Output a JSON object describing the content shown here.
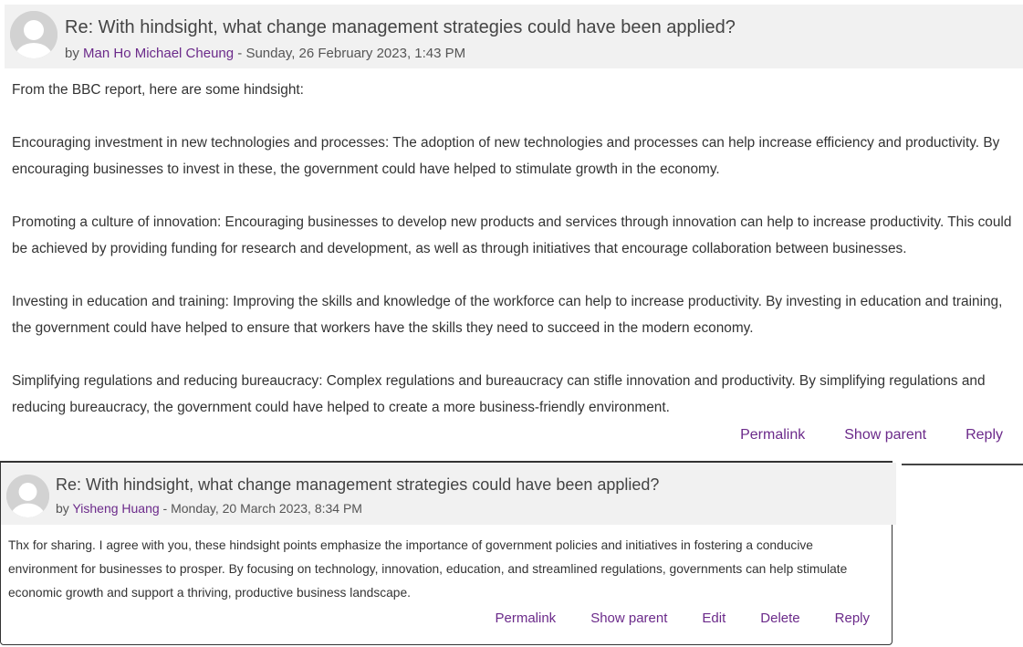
{
  "post1": {
    "subject": "Re: With hindsight, what change management strategies could have been applied?",
    "by_prefix": "by",
    "author": "Man Ho Michael Cheung",
    "date": " - Sunday, 26 February 2023, 1:43 PM",
    "paragraphs": [
      "From the BBC report, here are some hindsight:",
      "Encouraging investment in new technologies and processes: The adoption of new technologies and processes can help increase efficiency and productivity. By encouraging businesses to invest in these, the government could have helped to stimulate growth in the economy.",
      "Promoting a culture of innovation: Encouraging businesses to develop new products and services through innovation can help to increase productivity. This could be achieved by providing funding for research and development, as well as through initiatives that encourage collaboration between businesses.",
      "Investing in education and training: Improving the skills and knowledge of the workforce can help to increase productivity. By investing in education and training, the government could have helped to ensure that workers have the skills they need to succeed in the modern economy.",
      "Simplifying regulations and reducing bureaucracy: Complex regulations and bureaucracy can stifle innovation and productivity. By simplifying regulations and reducing bureaucracy, the government could have helped to create a more business-friendly environment."
    ],
    "actions": {
      "permalink": "Permalink",
      "show_parent": "Show parent",
      "reply": "Reply"
    }
  },
  "post2": {
    "subject": "Re: With hindsight, what change management strategies could have been applied?",
    "by_prefix": "by",
    "author": "Yisheng Huang",
    "date": " - Monday, 20 March 2023, 8:34 PM",
    "body": "Thx for sharing. I agree with you, these hindsight points emphasize the importance of government policies and initiatives in fostering a conducive environment for businesses to prosper. By focusing on technology, innovation, education, and streamlined regulations, governments can help stimulate economic growth and support a thriving, productive business landscape.",
    "actions": {
      "permalink": "Permalink",
      "show_parent": "Show parent",
      "edit": "Edit",
      "delete": "Delete",
      "reply": "Reply"
    }
  },
  "colors": {
    "link": "#6b2a8a",
    "header_bg": "#f1f1f1",
    "text": "#333333"
  },
  "icons": {
    "avatar": "default-user-avatar-icon"
  }
}
